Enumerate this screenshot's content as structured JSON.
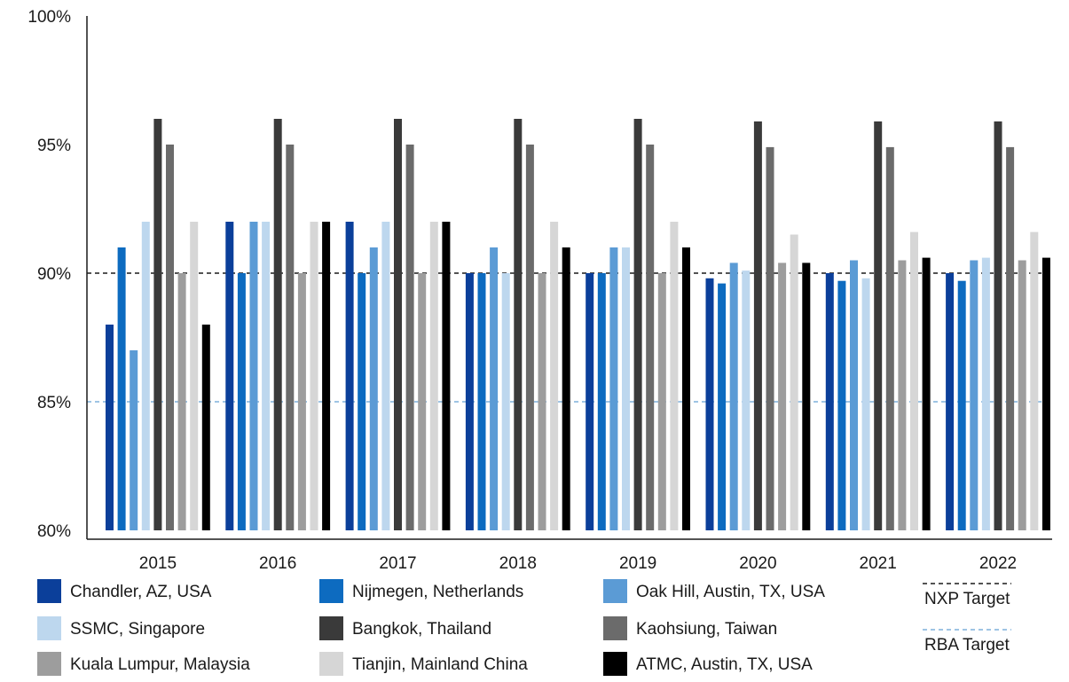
{
  "chart_data": {
    "type": "bar",
    "categories": [
      "2015",
      "2016",
      "2017",
      "2018",
      "2019",
      "2020",
      "2021",
      "2022"
    ],
    "ylim": [
      80,
      100
    ],
    "yticks": [
      "80%",
      "85%",
      "90%",
      "95%",
      "100%"
    ],
    "ytick_values": [
      80,
      85,
      90,
      95,
      100
    ],
    "grid": false,
    "legend_position": "bottom",
    "series": [
      {
        "name": "Chandler, AZ, USA",
        "color": "#0b3f9a",
        "values": [
          88,
          92,
          92,
          90,
          90,
          89.8,
          90,
          90
        ]
      },
      {
        "name": "Nijmegen, Netherlands",
        "color": "#0d6bc0",
        "values": [
          91,
          90,
          90,
          90,
          90,
          89.6,
          89.7,
          89.7
        ]
      },
      {
        "name": "Oak Hill, Austin, TX, USA",
        "color": "#5b9bd5",
        "values": [
          87,
          92,
          91,
          91,
          91,
          90.4,
          90.5,
          90.5
        ]
      },
      {
        "name": "SSMC, Singapore",
        "color": "#bdd7ee",
        "values": [
          92,
          92,
          92,
          90,
          91,
          90.1,
          89.8,
          90.6
        ]
      },
      {
        "name": "Bangkok, Thailand",
        "color": "#3a3a3a",
        "values": [
          96,
          96,
          96,
          96,
          96,
          95.9,
          95.9,
          95.9
        ]
      },
      {
        "name": "Kaohsiung, Taiwan",
        "color": "#6b6b6b",
        "values": [
          95,
          95,
          95,
          95,
          95,
          94.9,
          94.9,
          94.9
        ]
      },
      {
        "name": "Kuala Lumpur, Malaysia",
        "color": "#9d9d9d",
        "values": [
          90,
          90,
          90,
          90,
          90,
          90.4,
          90.5,
          90.5
        ]
      },
      {
        "name": "Tianjin, Mainland China",
        "color": "#d6d6d6",
        "values": [
          92,
          92,
          92,
          92,
          92,
          91.5,
          91.6,
          91.6
        ]
      },
      {
        "name": "ATMC, Austin, TX, USA",
        "color": "#000000",
        "values": [
          88,
          92,
          92,
          91,
          91,
          90.4,
          90.6,
          90.6
        ]
      }
    ],
    "reference_lines": [
      {
        "name": "NXP Target",
        "value": 90,
        "color": "#1a1a1a",
        "style": "dashed"
      },
      {
        "name": "RBA Target",
        "value": 85,
        "color": "#7fb0dc",
        "style": "dashed"
      }
    ]
  }
}
